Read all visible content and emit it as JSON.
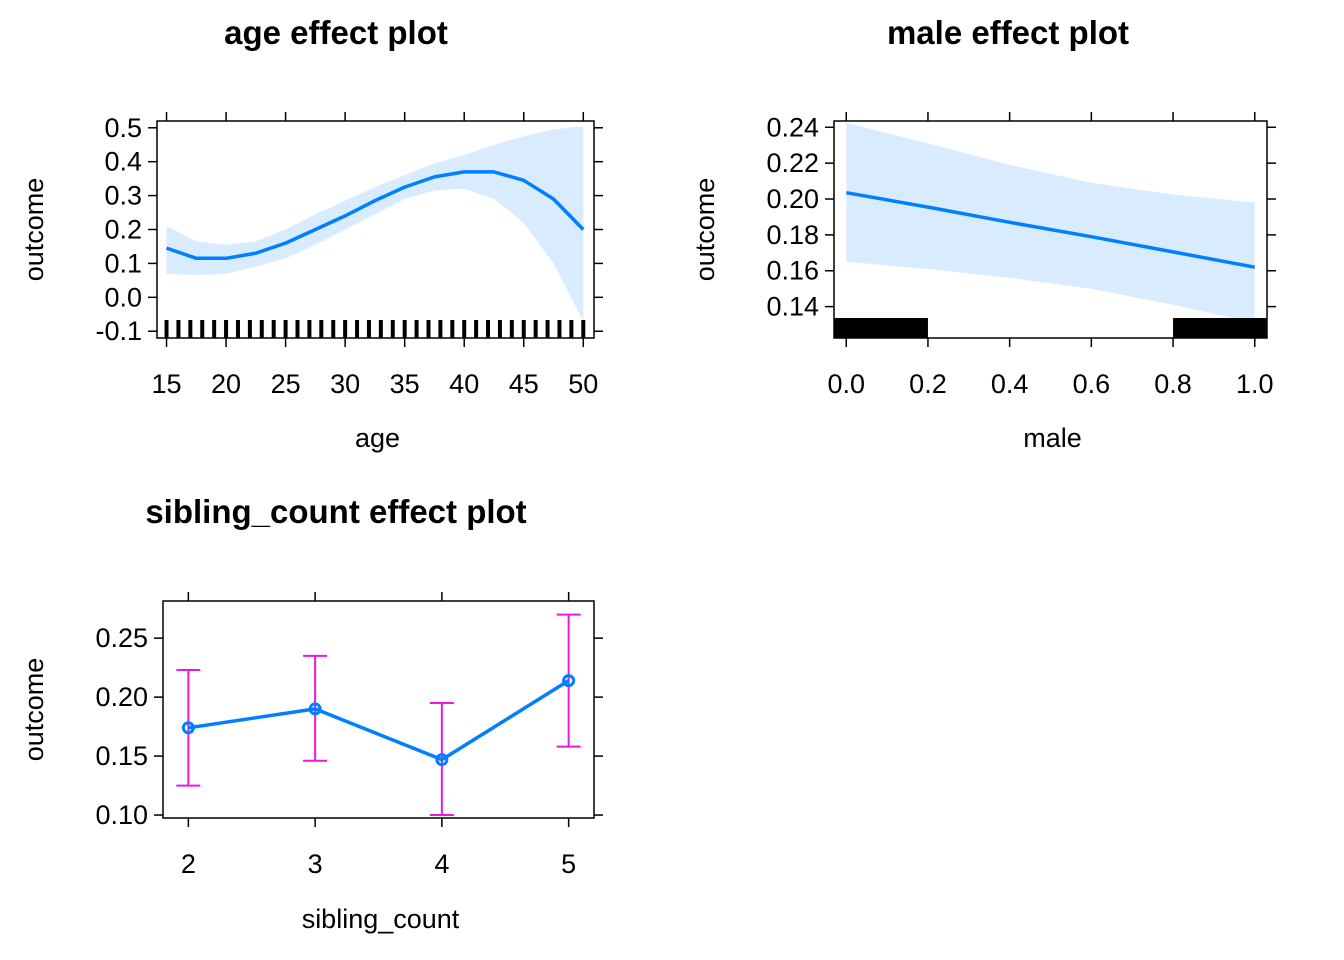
{
  "chart_data": [
    {
      "type": "line",
      "title": "age effect plot",
      "xlabel": "age",
      "ylabel": "outcome",
      "xlim": [
        14.2,
        50.9
      ],
      "ylim": [
        -0.12,
        0.52
      ],
      "xticks": [
        15,
        20,
        25,
        30,
        35,
        40,
        45,
        50
      ],
      "xtick_labels": [
        "15",
        "20",
        "25",
        "30",
        "35",
        "40",
        "45",
        "50"
      ],
      "yticks": [
        -0.1,
        0.0,
        0.1,
        0.2,
        0.3,
        0.4,
        0.5
      ],
      "ytick_labels": [
        "-0.1",
        "0.0",
        "0.1",
        "0.2",
        "0.3",
        "0.4",
        "0.5"
      ],
      "series": [
        {
          "x": [
            15,
            17.5,
            20,
            22.5,
            25,
            27.5,
            30,
            32.5,
            35,
            37.5,
            40,
            42.5,
            45,
            47.5,
            50
          ],
          "y": [
            0.145,
            0.115,
            0.115,
            0.13,
            0.16,
            0.2,
            0.24,
            0.285,
            0.325,
            0.355,
            0.37,
            0.37,
            0.345,
            0.29,
            0.2
          ],
          "lower": [
            0.07,
            0.065,
            0.07,
            0.09,
            0.115,
            0.155,
            0.2,
            0.245,
            0.29,
            0.315,
            0.32,
            0.29,
            0.22,
            0.1,
            -0.07
          ],
          "upper": [
            0.21,
            0.165,
            0.155,
            0.165,
            0.2,
            0.245,
            0.285,
            0.325,
            0.36,
            0.395,
            0.42,
            0.45,
            0.475,
            0.495,
            0.505
          ]
        }
      ],
      "rug": [
        15,
        16,
        17,
        18,
        19,
        20,
        21,
        22,
        23,
        24,
        25,
        26,
        27,
        28,
        29,
        30,
        31,
        32,
        33,
        34,
        35,
        36,
        37,
        38,
        39,
        40,
        41,
        42,
        43,
        44,
        45,
        46,
        47,
        48,
        49,
        50
      ],
      "colors": {
        "line": "#0080ff",
        "band": "#d9ebff"
      }
    },
    {
      "type": "line",
      "title": "male effect plot",
      "xlabel": "male",
      "ylabel": "outcome",
      "xlim": [
        -0.03,
        1.03
      ],
      "ylim": [
        0.1225,
        0.2435
      ],
      "xticks": [
        0.0,
        0.2,
        0.4,
        0.6,
        0.8,
        1.0
      ],
      "xtick_labels": [
        "0.0",
        "0.2",
        "0.4",
        "0.6",
        "0.8",
        "1.0"
      ],
      "yticks": [
        0.14,
        0.16,
        0.18,
        0.2,
        0.22,
        0.24
      ],
      "ytick_labels": [
        "0.14",
        "0.16",
        "0.18",
        "0.20",
        "0.22",
        "0.24"
      ],
      "series": [
        {
          "x": [
            0.0,
            0.2,
            0.4,
            0.6,
            0.8,
            1.0
          ],
          "y": [
            0.2035,
            0.1955,
            0.187,
            0.179,
            0.1705,
            0.162
          ],
          "lower": [
            0.165,
            0.161,
            0.156,
            0.15,
            0.141,
            0.131
          ],
          "upper": [
            0.2425,
            0.231,
            0.219,
            0.209,
            0.2025,
            0.198
          ]
        }
      ],
      "rug_blocks": [
        [
          -0.03,
          0.2
        ],
        [
          0.8,
          1.03
        ]
      ],
      "colors": {
        "line": "#0080ff",
        "band": "#d9ebff"
      }
    },
    {
      "type": "line",
      "title": "sibling_count effect plot",
      "xlabel": "sibling_count",
      "ylabel": "outcome",
      "xlim": [
        1.8,
        5.2
      ],
      "ylim": [
        0.0975,
        0.2815
      ],
      "xticks": [
        2,
        3,
        4,
        5
      ],
      "xtick_labels": [
        "2",
        "3",
        "4",
        "5"
      ],
      "yticks": [
        0.1,
        0.15,
        0.2,
        0.25
      ],
      "ytick_labels": [
        "0.10",
        "0.15",
        "0.20",
        "0.25"
      ],
      "series": [
        {
          "x": [
            2,
            3,
            4,
            5
          ],
          "y": [
            0.174,
            0.19,
            0.147,
            0.214
          ],
          "lower": [
            0.125,
            0.146,
            0.1,
            0.158
          ],
          "upper": [
            0.223,
            0.235,
            0.195,
            0.27
          ]
        }
      ],
      "colors": {
        "line": "#0080ff",
        "errorbar": "#e619e6"
      }
    }
  ]
}
